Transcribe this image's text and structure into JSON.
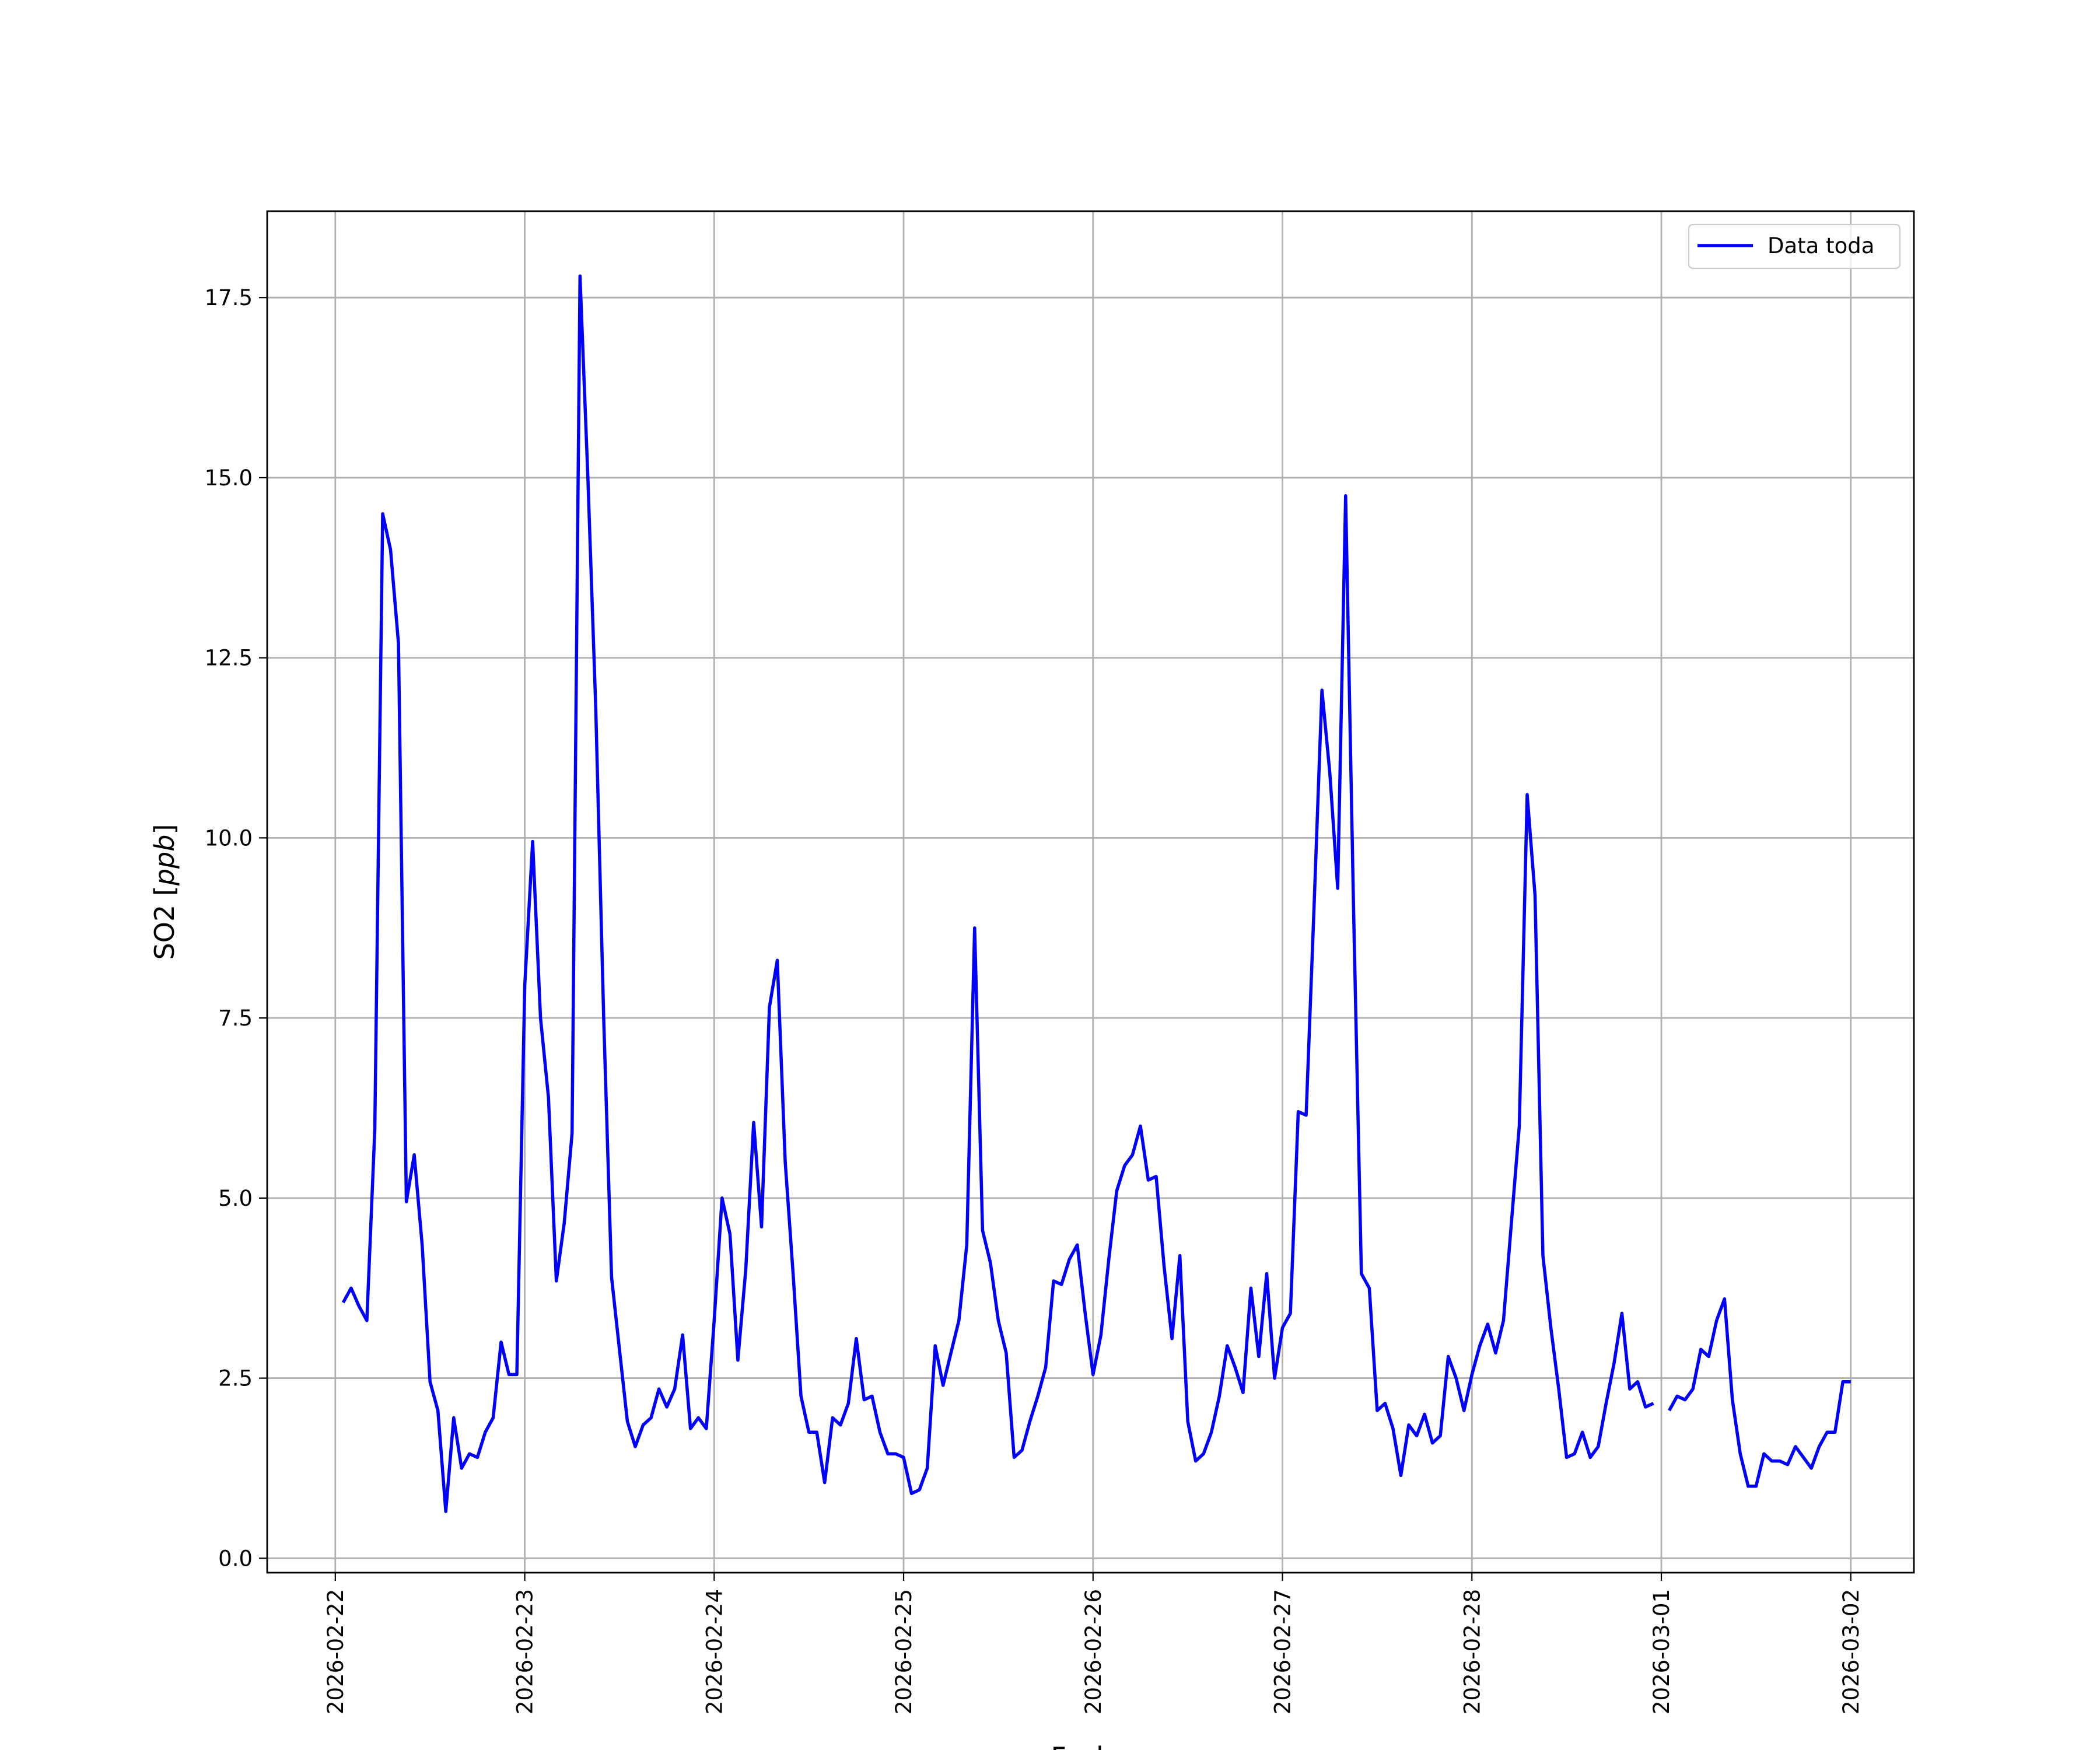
{
  "chart_data": {
    "type": "line",
    "xlabel": "Fecha",
    "ylabel": "SO2 [ppb]",
    "ylabel_main": "SO2 [",
    "ylabel_unit": "ppb",
    "ylabel_close": "]",
    "ylim": [
      -0.2,
      18.7
    ],
    "xlim": [
      "2026-02-21T15:22",
      "2026-03-02T08:00"
    ],
    "grid": true,
    "legend_position": "upper right",
    "x_ticks": [
      "2026-02-22",
      "2026-02-23",
      "2026-02-24",
      "2026-02-25",
      "2026-02-26",
      "2026-02-27",
      "2026-02-28",
      "2026-03-01",
      "2026-03-02"
    ],
    "y_ticks": [
      "0.0",
      "2.5",
      "5.0",
      "7.5",
      "10.0",
      "12.5",
      "15.0",
      "17.5"
    ],
    "y_tick_values": [
      0,
      2.5,
      5,
      7.5,
      10,
      12.5,
      15,
      17.5
    ],
    "series": [
      {
        "name": "Data toda",
        "color": "#0000ff",
        "start": "2026-02-22T01:00",
        "interval_hours": 1,
        "values": [
          3.55,
          3.75,
          3.5,
          3.3,
          5.95,
          14.5,
          14.0,
          12.7,
          4.95,
          5.6,
          4.35,
          2.45,
          2.05,
          0.65,
          1.95,
          1.25,
          1.45,
          1.4,
          1.75,
          1.95,
          3.0,
          2.55,
          2.55,
          7.95,
          9.95,
          7.5,
          6.4,
          3.85,
          4.65,
          5.9,
          17.8,
          15.0,
          11.8,
          7.5,
          3.9,
          2.9,
          1.9,
          1.55,
          1.85,
          1.95,
          2.35,
          2.1,
          2.35,
          3.1,
          1.8,
          1.95,
          1.8,
          3.3,
          5.0,
          4.5,
          2.75,
          4.0,
          6.05,
          4.6,
          7.65,
          8.3,
          5.5,
          3.95,
          2.25,
          1.75,
          1.75,
          1.05,
          1.95,
          1.85,
          2.15,
          3.05,
          2.2,
          2.25,
          1.75,
          1.45,
          1.45,
          1.4,
          0.9,
          0.95,
          1.25,
          2.95,
          2.4,
          2.85,
          3.3,
          4.35,
          8.75,
          4.55,
          4.1,
          3.3,
          2.85,
          1.4,
          1.5,
          1.9,
          2.25,
          2.65,
          3.85,
          3.8,
          4.15,
          4.35,
          3.4,
          2.55,
          3.1,
          4.15,
          5.1,
          5.45,
          5.6,
          6.0,
          5.25,
          5.3,
          4.05,
          3.05,
          4.2,
          1.9,
          1.35,
          1.45,
          1.75,
          2.25,
          2.95,
          2.65,
          2.3,
          3.75,
          2.8,
          3.95,
          2.5,
          3.2,
          3.4,
          6.2,
          6.15,
          9.05,
          12.05,
          10.9,
          9.3,
          14.75,
          9.05,
          3.95,
          3.75,
          2.05,
          2.15,
          1.8,
          1.15,
          1.85,
          1.7,
          2.0,
          1.6,
          1.7,
          2.8,
          2.5,
          2.05,
          2.55,
          2.95,
          3.25,
          2.85,
          3.3,
          4.65,
          6.0,
          10.6,
          9.2,
          4.2,
          3.2,
          2.35,
          1.4,
          1.45,
          1.75,
          1.4,
          1.55,
          2.15,
          2.7,
          3.4,
          2.35,
          2.45,
          2.1,
          2.15,
          null,
          2.05,
          2.25,
          2.2,
          2.35,
          2.9,
          2.8,
          3.3,
          3.6,
          2.2,
          1.45,
          1.0,
          1.0,
          1.45,
          1.35,
          1.35,
          1.3,
          1.55,
          1.4,
          1.25,
          1.55,
          1.75,
          1.75,
          2.45,
          2.45
        ]
      }
    ]
  }
}
